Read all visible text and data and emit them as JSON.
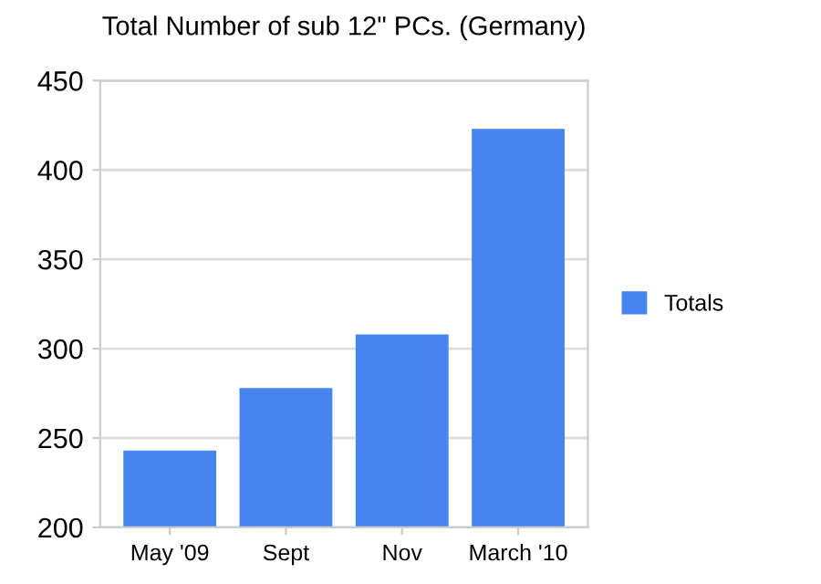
{
  "chart_data": {
    "type": "bar",
    "title": "Total Number of sub 12\" PCs. (Germany)",
    "categories": [
      "May '09",
      "Sept",
      "Nov",
      "March '10"
    ],
    "series": [
      {
        "name": "Totals",
        "color": "#4684ee",
        "values": [
          243,
          278,
          308,
          423
        ]
      }
    ],
    "ylim": [
      200,
      450
    ],
    "yticks": [
      200,
      250,
      300,
      350,
      400,
      450
    ],
    "grid": "y",
    "legend": "right"
  }
}
